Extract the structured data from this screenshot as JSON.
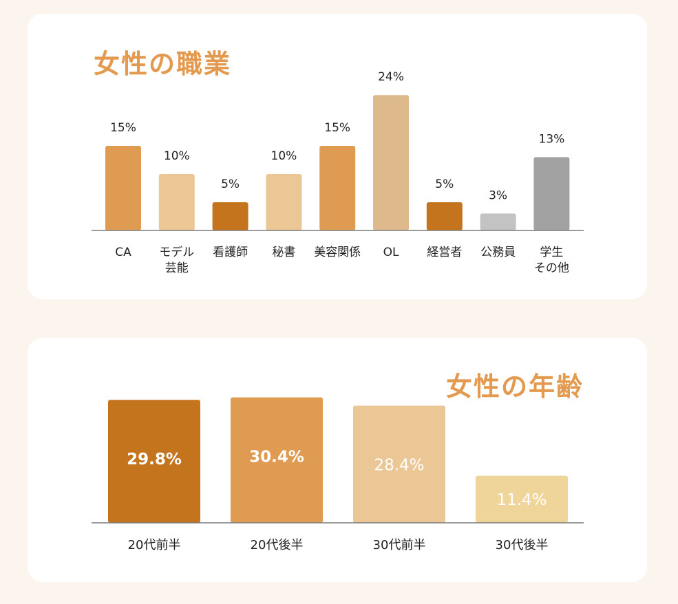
{
  "chart_data": [
    {
      "type": "bar",
      "title": "女性の職業",
      "categories": [
        [
          "CA"
        ],
        [
          "モデル",
          "芸能"
        ],
        [
          "看護師"
        ],
        [
          "秘書"
        ],
        [
          "美容関係"
        ],
        [
          "OL"
        ],
        [
          "経営者"
        ],
        [
          "公務員"
        ],
        [
          "学生",
          "その他"
        ]
      ],
      "values": [
        15,
        10,
        5,
        10,
        15,
        24,
        5,
        3,
        13
      ],
      "value_labels": [
        "15%",
        "10%",
        "5%",
        "10%",
        "15%",
        "24%",
        "5%",
        "3%",
        "13%"
      ],
      "colors": [
        "#e09b52",
        "#ecc796",
        "#c5741e",
        "#ecc796",
        "#e09b52",
        "#ddb98c",
        "#c5741e",
        "#c3c3c3",
        "#a2a2a2"
      ],
      "unit": "%"
    },
    {
      "type": "bar",
      "title": "女性の年齢",
      "categories": [
        "20代前半",
        "20代後半",
        "30代前半",
        "30代後半"
      ],
      "values": [
        29.8,
        30.4,
        28.4,
        11.4
      ],
      "value_labels": [
        "29.8%",
        "30.4%",
        "28.4%",
        "11.4%"
      ],
      "colors": [
        "#c5741e",
        "#e09b52",
        "#ecc796",
        "#f0d59b"
      ],
      "unit": "%"
    }
  ],
  "theme": {
    "title_color": "#e39a4f",
    "axis_color": "#7a7a7a",
    "label_color": "#222222",
    "value_text_color": "#ffffff"
  }
}
